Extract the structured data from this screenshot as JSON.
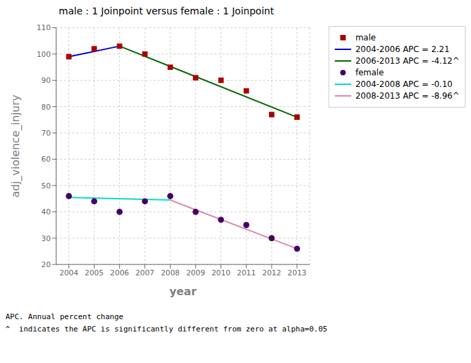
{
  "chart_data": {
    "type": "scatter",
    "title": "male : 1 Joinpoint  versus  female : 1 Joinpoint",
    "x_label": "year",
    "y_label": "adj_violence_injury",
    "x": [
      2004,
      2005,
      2006,
      2007,
      2008,
      2009,
      2010,
      2011,
      2012,
      2013
    ],
    "xlim": [
      2003.5,
      2013.5
    ],
    "xticks": [
      2004,
      2005,
      2006,
      2007,
      2008,
      2009,
      2010,
      2011,
      2012,
      2013
    ],
    "ylim": [
      20,
      110
    ],
    "yticks": [
      20,
      30,
      40,
      50,
      60,
      70,
      80,
      90,
      100,
      110
    ],
    "grid": true,
    "legend": "right",
    "series": [
      {
        "name": "male",
        "type": "scatter",
        "marker": "square",
        "color": "#aa0000",
        "values": [
          99,
          102,
          103,
          100,
          95,
          91,
          90,
          86,
          77,
          76
        ]
      },
      {
        "name": "2004-2006 APC = 2.21",
        "type": "line",
        "color": "#0000cc",
        "x": [
          2004,
          2006
        ],
        "values": [
          99,
          103
        ]
      },
      {
        "name": "2006-2013 APC = -4.12^",
        "type": "line",
        "color": "#006400",
        "x": [
          2006,
          2013
        ],
        "values": [
          103,
          76
        ]
      },
      {
        "name": "female",
        "type": "scatter",
        "marker": "circle",
        "color": "#440066",
        "values": [
          46,
          44,
          40,
          44,
          46,
          40,
          37,
          35,
          30,
          26
        ]
      },
      {
        "name": "2004-2008 APC = -0.10",
        "type": "line",
        "color": "#00ddcc",
        "x": [
          2004,
          2008
        ],
        "values": [
          45.5,
          44.5
        ]
      },
      {
        "name": "2008-2013 APC = -8.96^",
        "type": "line",
        "color": "#dd88aa",
        "x": [
          2008,
          2013
        ],
        "values": [
          44.5,
          26
        ]
      }
    ],
    "annotations": [
      "APC. Annual percent change",
      "^  indicates the APC is significantly different from zero at alpha=0.05"
    ]
  }
}
